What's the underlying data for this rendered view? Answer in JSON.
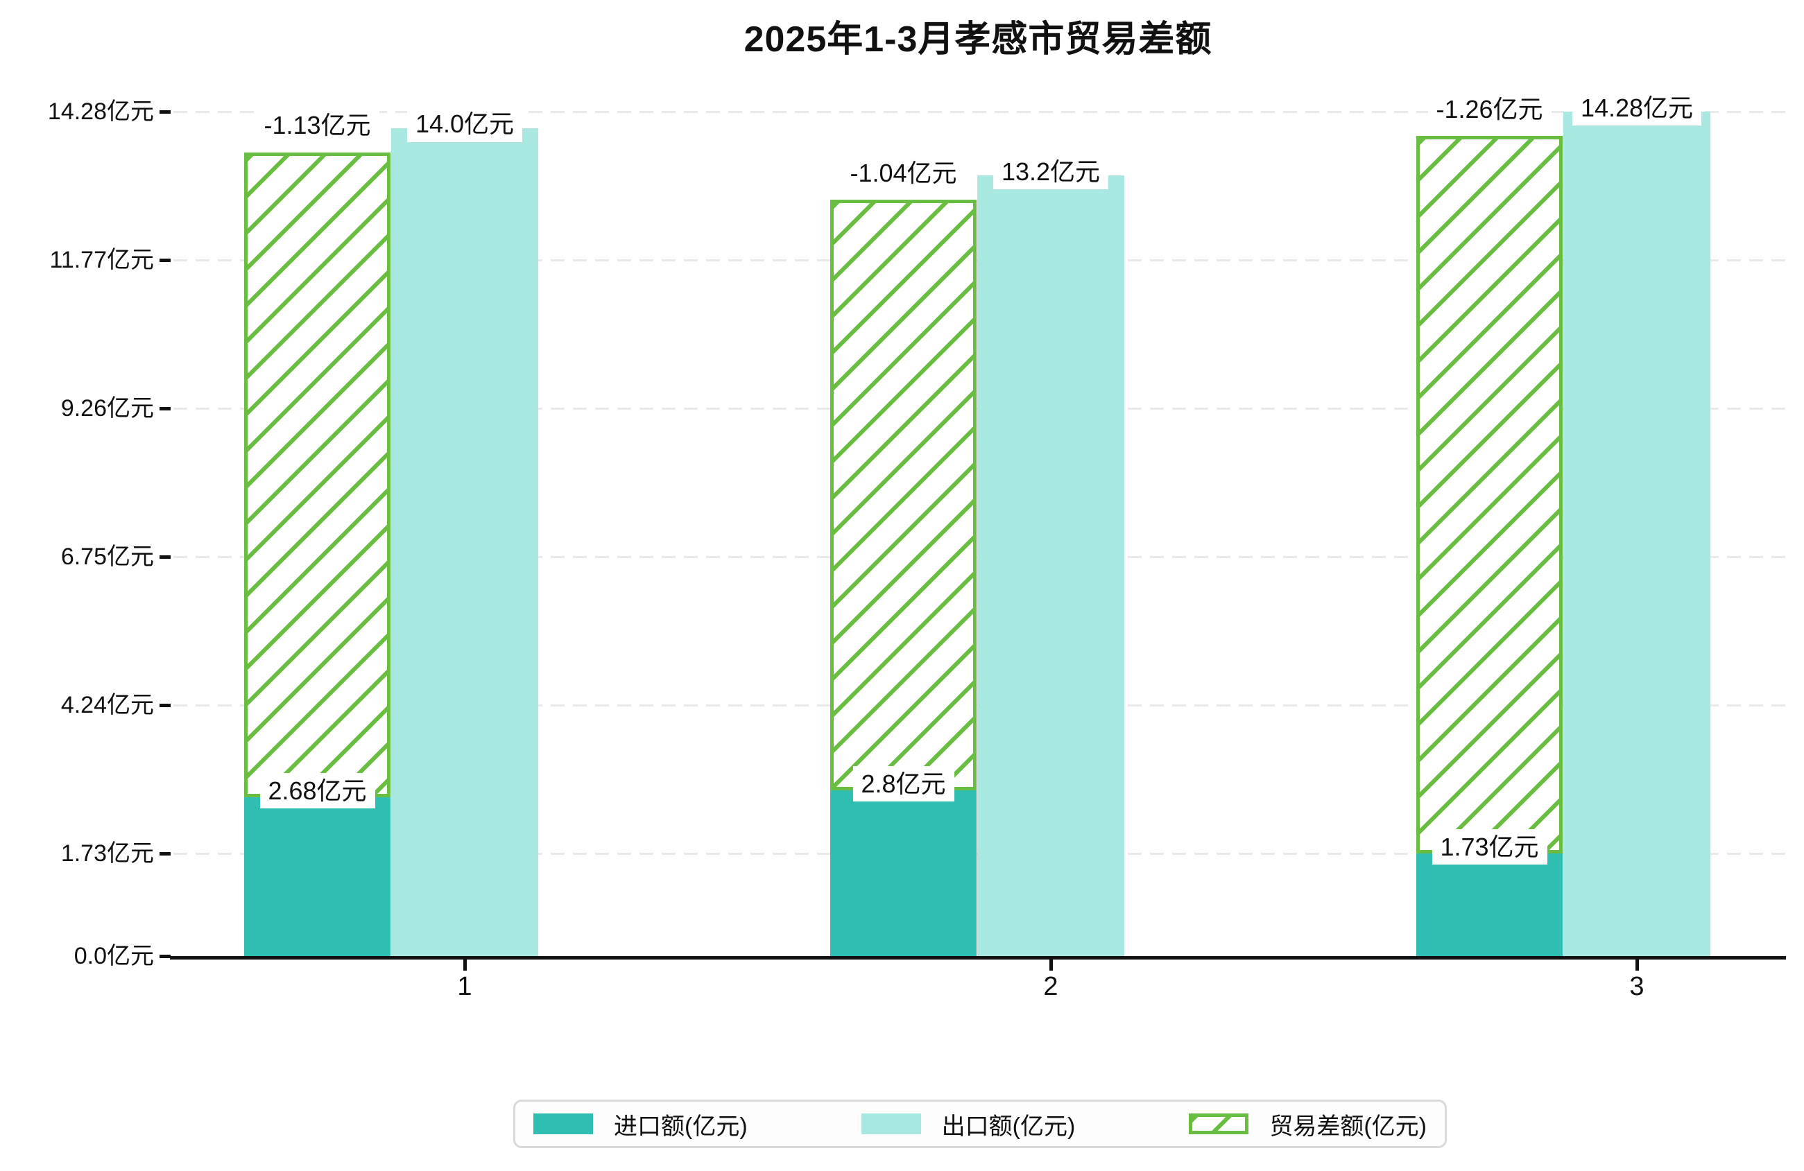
{
  "title": "2025年1-3月孝感市贸易差额",
  "chart_data": {
    "type": "bar",
    "categories": [
      "1",
      "2",
      "3"
    ],
    "series": [
      {
        "name": "进口额(亿元)",
        "role": "import",
        "style": "solid",
        "color": "#2fbeb1",
        "values": [
          2.68,
          2.8,
          1.73
        ],
        "value_labels": [
          "2.68亿元",
          "2.8亿元",
          "1.73亿元"
        ]
      },
      {
        "name": "出口额(亿元)",
        "role": "export",
        "style": "solid",
        "color": "#a9e7e1",
        "values": [
          14.0,
          13.2,
          14.28
        ],
        "value_labels": [
          "14.0亿元",
          "13.2亿元",
          "14.28亿元"
        ]
      },
      {
        "name": "贸易差额(亿元)",
        "role": "trade-balance",
        "style": "hatched",
        "color": "#69bd40",
        "values": [
          -1.13,
          -1.04,
          -1.26
        ],
        "value_labels": [
          "-1.13亿元",
          "-1.04亿元",
          "-1.26亿元"
        ]
      }
    ],
    "y_axis": {
      "unit": "亿元",
      "ylim": [
        0,
        14.28
      ],
      "ticks": [
        {
          "value": 0,
          "label": "0.0亿元"
        },
        {
          "value": 1.73,
          "label": "1.73亿元"
        },
        {
          "value": 4.24,
          "label": "4.24亿元"
        },
        {
          "value": 6.75,
          "label": "6.75亿元"
        },
        {
          "value": 9.26,
          "label": "9.26亿元"
        },
        {
          "value": 11.77,
          "label": "11.77亿元"
        },
        {
          "value": 14.28,
          "label": "14.28亿元"
        }
      ]
    },
    "x_axis": {
      "tick_labels": [
        "1",
        "2",
        "3"
      ]
    },
    "grid": "horizontal-dashed",
    "legend_position": "bottom-center",
    "colors": {
      "axis": "#111111",
      "gridline": "#e9e9e9",
      "label_background": "#ffffff"
    }
  }
}
